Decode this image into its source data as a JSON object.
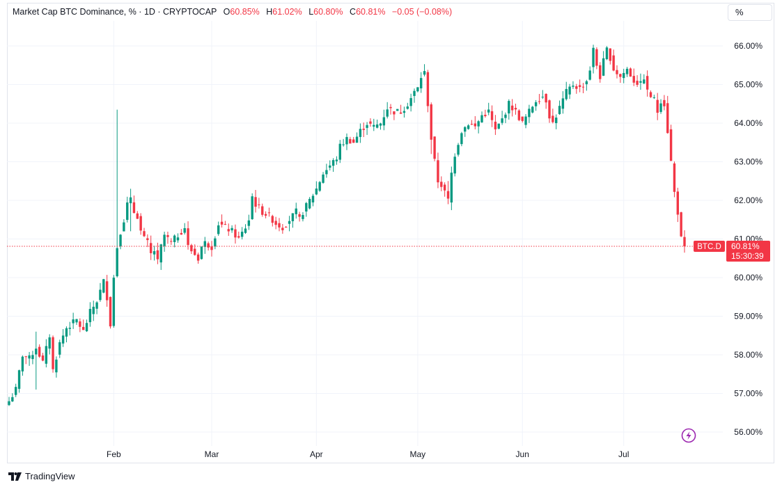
{
  "header": {
    "symbol_title": "Market Cap BTC Dominance, % · 1D · CRYPTOCAP",
    "open_label": "O",
    "open_value": "60.85%",
    "high_label": "H",
    "high_value": "61.02%",
    "low_label": "L",
    "low_value": "60.80%",
    "close_label": "C",
    "close_value": "60.81%",
    "change": "−0.05 (−0.08%)"
  },
  "toolbar": {
    "scale_button_label": "%"
  },
  "footer": {
    "brand_name": "TradingView"
  },
  "colors": {
    "up": "#089981",
    "down": "#f23645",
    "grid": "#f0f3fa",
    "text": "#131722",
    "accent_icon": "#9c27b0"
  },
  "chart_data": {
    "type": "candlestick",
    "ylim": [
      55.75,
      66.5
    ],
    "y_ticks": [
      "66.00%",
      "65.00%",
      "64.00%",
      "63.00%",
      "62.00%",
      "61.00%",
      "60.00%",
      "59.00%",
      "58.00%",
      "57.00%",
      "56.00%"
    ],
    "y_tick_values": [
      66,
      65,
      64,
      63,
      62,
      61,
      60,
      59,
      58,
      57,
      56
    ],
    "x_ticks": [
      "Feb",
      "Mar",
      "Apr",
      "May",
      "Jun",
      "Jul"
    ],
    "x_tick_day_index": [
      31,
      60,
      91,
      121,
      152,
      182
    ],
    "last_price_label": {
      "symbol": "BTC.D",
      "price": "60.81%",
      "countdown": "15:30:39"
    },
    "anchors": [
      [
        0,
        56.8
      ],
      [
        2,
        57.1
      ],
      [
        4,
        58.0
      ],
      [
        6,
        57.9
      ],
      [
        8,
        58.2
      ],
      [
        10,
        57.8
      ],
      [
        12,
        58.5
      ],
      [
        13,
        57.6
      ],
      [
        15,
        58.3
      ],
      [
        17,
        58.7
      ],
      [
        20,
        58.9
      ],
      [
        22,
        58.6
      ],
      [
        24,
        59.1
      ],
      [
        26,
        59.4
      ],
      [
        28,
        59.9
      ],
      [
        29,
        59.5
      ],
      [
        30,
        58.8
      ],
      [
        31,
        60.0
      ],
      [
        32,
        60.8
      ],
      [
        33,
        61.2
      ],
      [
        34,
        61.5
      ],
      [
        35,
        61.9
      ],
      [
        36,
        62.0
      ],
      [
        37,
        61.7
      ],
      [
        38,
        61.6
      ],
      [
        39,
        61.2
      ],
      [
        40,
        61.0
      ],
      [
        41,
        60.9
      ],
      [
        42,
        60.6
      ],
      [
        43,
        60.7
      ],
      [
        44,
        60.4
      ],
      [
        45,
        60.8
      ],
      [
        46,
        61.1
      ],
      [
        47,
        61.0
      ],
      [
        48,
        60.9
      ],
      [
        50,
        61.1
      ],
      [
        52,
        61.3
      ],
      [
        53,
        60.8
      ],
      [
        54,
        60.7
      ],
      [
        55,
        60.6
      ],
      [
        56,
        60.5
      ],
      [
        57,
        60.8
      ],
      [
        58,
        60.9
      ],
      [
        60,
        60.8
      ],
      [
        62,
        61.4
      ],
      [
        64,
        61.3
      ],
      [
        66,
        61.2
      ],
      [
        68,
        61.0
      ],
      [
        70,
        61.3
      ],
      [
        71,
        61.5
      ],
      [
        72,
        62.1
      ],
      [
        73,
        61.9
      ],
      [
        74,
        61.8
      ],
      [
        75,
        61.7
      ],
      [
        77,
        61.6
      ],
      [
        79,
        61.4
      ],
      [
        81,
        61.3
      ],
      [
        83,
        61.5
      ],
      [
        85,
        61.7
      ],
      [
        86,
        61.5
      ],
      [
        87,
        61.7
      ],
      [
        89,
        62.0
      ],
      [
        91,
        62.3
      ],
      [
        93,
        62.7
      ],
      [
        95,
        62.9
      ],
      [
        97,
        63.1
      ],
      [
        98,
        63.4
      ],
      [
        100,
        63.6
      ],
      [
        102,
        63.5
      ],
      [
        104,
        63.8
      ],
      [
        106,
        64.0
      ],
      [
        108,
        63.9
      ],
      [
        110,
        64.0
      ],
      [
        112,
        64.4
      ],
      [
        114,
        64.3
      ],
      [
        116,
        64.3
      ],
      [
        118,
        64.5
      ],
      [
        120,
        64.8
      ],
      [
        121,
        64.9
      ],
      [
        122,
        65.2
      ],
      [
        123,
        65.3
      ],
      [
        124,
        64.5
      ],
      [
        125,
        63.6
      ],
      [
        126,
        63.0
      ],
      [
        127,
        62.5
      ],
      [
        128,
        62.4
      ],
      [
        129,
        62.2
      ],
      [
        130,
        62.0
      ],
      [
        131,
        62.7
      ],
      [
        132,
        63.2
      ],
      [
        133,
        63.5
      ],
      [
        134,
        63.8
      ],
      [
        136,
        64.0
      ],
      [
        138,
        63.9
      ],
      [
        140,
        64.2
      ],
      [
        142,
        64.3
      ],
      [
        144,
        63.8
      ],
      [
        146,
        64.1
      ],
      [
        148,
        64.5
      ],
      [
        150,
        64.3
      ],
      [
        152,
        64.0
      ],
      [
        154,
        64.3
      ],
      [
        156,
        64.6
      ],
      [
        158,
        64.7
      ],
      [
        159,
        64.6
      ],
      [
        160,
        64.2
      ],
      [
        161,
        64.0
      ],
      [
        163,
        64.4
      ],
      [
        165,
        64.8
      ],
      [
        167,
        65.0
      ],
      [
        169,
        64.9
      ],
      [
        171,
        65.1
      ],
      [
        172,
        65.4
      ],
      [
        173,
        65.9
      ],
      [
        174,
        65.5
      ],
      [
        175,
        65.2
      ],
      [
        176,
        65.6
      ],
      [
        177,
        65.9
      ],
      [
        178,
        65.7
      ],
      [
        179,
        65.4
      ],
      [
        180,
        65.3
      ],
      [
        181,
        65.2
      ],
      [
        183,
        65.4
      ],
      [
        185,
        65.1
      ],
      [
        187,
        65.0
      ],
      [
        188,
        65.2
      ],
      [
        189,
        64.8
      ],
      [
        191,
        64.6
      ],
      [
        192,
        64.3
      ],
      [
        193,
        64.6
      ],
      [
        194,
        64.5
      ],
      [
        195,
        63.8
      ],
      [
        196,
        63.0
      ],
      [
        197,
        62.2
      ],
      [
        198,
        61.7
      ],
      [
        199,
        61.0
      ],
      [
        200,
        60.81
      ]
    ],
    "spikes": [
      {
        "day": 32,
        "high": 64.35,
        "low": 60.1
      },
      {
        "day": 36,
        "high": 62.3,
        "low": 61.2
      },
      {
        "day": 125,
        "high": 64.4,
        "low": 63.2
      },
      {
        "day": 130,
        "high": 62.5,
        "low": 61.9
      },
      {
        "day": 8,
        "high": 58.6,
        "low": 57.1
      }
    ]
  }
}
